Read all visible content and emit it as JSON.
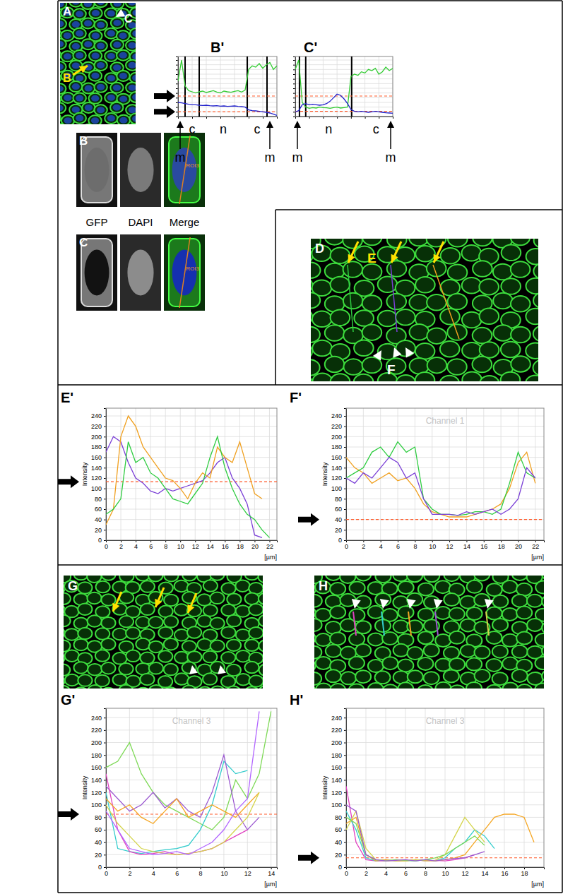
{
  "figure": {
    "image_panels": [
      {
        "label": "A",
        "markers": [
          "B",
          "C"
        ]
      },
      {
        "label": "B",
        "roi": "ROI3"
      },
      {
        "label": "C",
        "roi": "ROI3"
      },
      {
        "label": "D",
        "markers": [
          "E",
          "F"
        ]
      },
      {
        "label": "G"
      },
      {
        "label": "H"
      }
    ],
    "channels": [
      "GFP",
      "DAPI",
      "Merge"
    ]
  },
  "chart_data": [
    {
      "type": "line",
      "label": "B'",
      "x": [
        0,
        0.5,
        1,
        1.5,
        2,
        2.5,
        3,
        3.5,
        4,
        4.5,
        5,
        5.5,
        6,
        6.5,
        7,
        7.5,
        8,
        8.5,
        9,
        9.5,
        10,
        10.5,
        11,
        11.5,
        12,
        12.5,
        13,
        13.5,
        14
      ],
      "xlim": [
        0,
        14
      ],
      "ylim": [
        0,
        255
      ],
      "xticks": [
        0,
        2,
        4,
        6,
        8,
        10,
        12,
        14
      ],
      "yticks": [
        0,
        20,
        40,
        60,
        80,
        100,
        120,
        140,
        160,
        180,
        200,
        220,
        240
      ],
      "grid": true,
      "tick_labels": false,
      "series": [
        {
          "color": "#33cc33",
          "values": [
            150,
            240,
            130,
            110,
            105,
            100,
            105,
            108,
            102,
            106,
            110,
            104,
            100,
            108,
            105,
            103,
            107,
            110,
            104,
            112,
            200,
            215,
            210,
            225,
            205,
            220,
            230,
            200,
            215
          ]
        },
        {
          "color": "#2222cc",
          "values": [
            60,
            58,
            55,
            52,
            50,
            50,
            48,
            47,
            48,
            46,
            45,
            46,
            44,
            45,
            43,
            44,
            45,
            43,
            42,
            40,
            28,
            25,
            24,
            22,
            20,
            18,
            15,
            10,
            5
          ]
        }
      ],
      "hlines": [
        87,
        20
      ],
      "boundaries": [
        1,
        3,
        9.8,
        12.6
      ],
      "region_labels": [
        {
          "label": "c",
          "x": 2
        },
        {
          "label": "n",
          "x": 6.4
        },
        {
          "label": "c",
          "x": 11.2
        }
      ],
      "edge_labels": [
        {
          "label": "m",
          "x": 0.3
        },
        {
          "label": "m",
          "x": 13
        }
      ]
    },
    {
      "type": "line",
      "label": "C'",
      "x": [
        0,
        0.5,
        1,
        1.5,
        2,
        2.5,
        3,
        3.5,
        4,
        4.5,
        5,
        5.5,
        6,
        6.5,
        7,
        7.5,
        8,
        8.5,
        9,
        9.5,
        10,
        10.5,
        11,
        11.5,
        12,
        12.5,
        13,
        13.5,
        14
      ],
      "xlim": [
        0,
        14
      ],
      "ylim": [
        0,
        255
      ],
      "xticks": [
        0,
        2,
        4,
        6,
        8,
        10,
        12,
        14
      ],
      "yticks": [
        0,
        20,
        40,
        60,
        80,
        100,
        120,
        140,
        160,
        180,
        200,
        220,
        240
      ],
      "grid": true,
      "tick_labels": false,
      "series": [
        {
          "color": "#33cc33",
          "values": [
            200,
            240,
            60,
            40,
            35,
            38,
            36,
            40,
            38,
            37,
            35,
            38,
            40,
            36,
            38,
            40,
            170,
            180,
            175,
            190,
            185,
            200,
            195,
            205,
            180,
            190,
            210,
            195,
            205
          ]
        },
        {
          "color": "#2222cc",
          "values": [
            20,
            25,
            50,
            55,
            50,
            52,
            50,
            48,
            50,
            55,
            65,
            80,
            95,
            90,
            75,
            55,
            30,
            22,
            20,
            22,
            20,
            18,
            20,
            22,
            20,
            18,
            16,
            15,
            14
          ]
        }
      ],
      "hlines": [
        87,
        22
      ],
      "boundaries": [
        0.6,
        1.5,
        8.1
      ],
      "region_labels": [
        {
          "label": "n",
          "x": 4.8
        },
        {
          "label": "c",
          "x": 11.6
        }
      ],
      "edge_labels": [
        {
          "label": "m",
          "x": 0.3
        },
        {
          "label": "m",
          "x": 13.7
        }
      ]
    },
    {
      "type": "line",
      "label": "E'",
      "x": [
        0,
        1,
        2,
        3,
        4,
        5,
        6,
        7,
        8,
        9,
        10,
        11,
        12,
        13,
        14,
        15,
        16,
        17,
        18,
        19,
        20,
        21,
        22
      ],
      "xlim": [
        0,
        23
      ],
      "ylim": [
        0,
        255
      ],
      "xticks": [
        0,
        2,
        4,
        6,
        8,
        10,
        12,
        14,
        16,
        18,
        20,
        22
      ],
      "yticks": [
        0,
        20,
        40,
        60,
        80,
        100,
        120,
        140,
        160,
        180,
        200,
        220,
        240
      ],
      "grid": true,
      "x_label": "[µm]",
      "y_label": "Intensity",
      "series": [
        {
          "color": "#7a3fd6",
          "values": [
            170,
            200,
            190,
            150,
            120,
            110,
            95,
            90,
            100,
            95,
            100,
            105,
            110,
            115,
            130,
            150,
            160,
            120,
            100,
            70,
            10,
            5,
            null
          ]
        },
        {
          "color": "#f0a020",
          "values": [
            30,
            60,
            200,
            240,
            220,
            180,
            160,
            140,
            120,
            115,
            100,
            80,
            110,
            130,
            120,
            180,
            160,
            150,
            190,
            140,
            90,
            80,
            null
          ]
        },
        {
          "color": "#2ecc40",
          "values": [
            50,
            60,
            80,
            190,
            150,
            160,
            130,
            120,
            100,
            80,
            75,
            70,
            90,
            110,
            160,
            200,
            140,
            100,
            70,
            50,
            40,
            20,
            5
          ]
        }
      ],
      "hlines": [
        113
      ]
    },
    {
      "type": "line",
      "label": "F'",
      "title": "Channel 1",
      "x": [
        0,
        1,
        2,
        3,
        4,
        5,
        6,
        7,
        8,
        9,
        10,
        11,
        12,
        13,
        14,
        15,
        16,
        17,
        18,
        19,
        20,
        21,
        22
      ],
      "xlim": [
        0,
        23
      ],
      "ylim": [
        0,
        255
      ],
      "xticks": [
        0,
        2,
        4,
        6,
        8,
        10,
        12,
        14,
        16,
        18,
        20,
        22
      ],
      "yticks": [
        0,
        20,
        40,
        60,
        80,
        100,
        120,
        140,
        160,
        180,
        200,
        220,
        240
      ],
      "grid": true,
      "x_label": "[µm]",
      "y_label": "Intensity",
      "series": [
        {
          "color": "#f0a020",
          "values": [
            160,
            140,
            130,
            110,
            120,
            130,
            115,
            120,
            100,
            70,
            55,
            50,
            45,
            45,
            45,
            50,
            55,
            60,
            70,
            100,
            150,
            170,
            110
          ]
        },
        {
          "color": "#2ecc40",
          "values": [
            120,
            130,
            140,
            170,
            180,
            160,
            190,
            170,
            180,
            80,
            60,
            50,
            50,
            48,
            50,
            55,
            55,
            50,
            60,
            110,
            170,
            130,
            120
          ]
        },
        {
          "color": "#7a3fd6",
          "values": [
            120,
            110,
            130,
            120,
            140,
            160,
            150,
            120,
            130,
            80,
            50,
            50,
            50,
            48,
            55,
            50,
            55,
            60,
            50,
            60,
            80,
            140,
            120
          ]
        }
      ],
      "hlines": [
        40
      ]
    },
    {
      "type": "line",
      "label": "G'",
      "title": "Channel 3",
      "x": [
        0,
        1,
        2,
        3,
        4,
        5,
        6,
        7,
        8,
        9,
        10,
        11,
        12,
        13,
        14
      ],
      "xlim": [
        0,
        14.5
      ],
      "ylim": [
        0,
        255
      ],
      "xticks": [
        0,
        2,
        4,
        6,
        8,
        10,
        12,
        14
      ],
      "yticks": [
        0,
        20,
        40,
        60,
        80,
        100,
        120,
        140,
        160,
        180,
        200,
        220,
        240
      ],
      "grid": true,
      "x_label": "[µm]",
      "y_label": "Intensity",
      "series": [
        {
          "color": "#7ed957",
          "values": [
            160,
            170,
            200,
            150,
            120,
            100,
            90,
            80,
            70,
            60,
            80,
            140,
            110,
            150,
            250
          ]
        },
        {
          "color": "#33cccc",
          "values": [
            120,
            30,
            25,
            22,
            25,
            28,
            30,
            35,
            60,
            100,
            170,
            150,
            155,
            null,
            null
          ]
        },
        {
          "color": "#9b59d0",
          "values": [
            130,
            110,
            90,
            100,
            120,
            95,
            110,
            90,
            80,
            120,
            180,
            90,
            60,
            80,
            null
          ]
        },
        {
          "color": "#e040c0",
          "values": [
            150,
            60,
            25,
            20,
            22,
            25,
            20,
            22,
            25,
            30,
            40,
            50,
            60,
            null,
            null
          ]
        },
        {
          "color": "#f5a623",
          "values": [
            110,
            90,
            100,
            80,
            70,
            90,
            110,
            80,
            90,
            100,
            90,
            80,
            100,
            120,
            null
          ]
        },
        {
          "color": "#d4d44a",
          "values": [
            100,
            70,
            50,
            30,
            25,
            22,
            20,
            22,
            25,
            30,
            40,
            60,
            80,
            120,
            null
          ]
        },
        {
          "color": "#b266ff",
          "values": [
            90,
            60,
            30,
            25,
            20,
            22,
            25,
            20,
            30,
            40,
            60,
            90,
            110,
            250,
            null
          ]
        }
      ],
      "hlines": [
        85
      ]
    },
    {
      "type": "line",
      "label": "H'",
      "title": "Channel 3",
      "x": [
        0,
        1,
        2,
        3,
        4,
        5,
        6,
        7,
        8,
        9,
        10,
        11,
        12,
        13,
        14,
        15,
        16,
        17,
        18,
        19
      ],
      "xlim": [
        0,
        20
      ],
      "ylim": [
        0,
        255
      ],
      "xticks": [
        0,
        2,
        4,
        6,
        8,
        10,
        12,
        14,
        16,
        18
      ],
      "yticks": [
        0,
        20,
        40,
        60,
        80,
        100,
        120,
        140,
        160,
        180,
        200,
        220,
        240
      ],
      "grid": true,
      "x_label": "[µm]",
      "y_label": "Intensity",
      "series": [
        {
          "color": "#e040c0",
          "values": [
            130,
            40,
            12,
            10,
            10,
            11,
            10,
            12,
            10,
            11,
            10,
            12,
            15,
            20,
            null,
            null,
            null,
            null,
            null,
            null
          ]
        },
        {
          "color": "#33cccc",
          "values": [
            90,
            60,
            15,
            10,
            12,
            10,
            11,
            10,
            12,
            10,
            15,
            30,
            40,
            60,
            50,
            30,
            null,
            null,
            null,
            null
          ]
        },
        {
          "color": "#f5a623",
          "values": [
            70,
            80,
            20,
            10,
            12,
            10,
            10,
            12,
            11,
            10,
            12,
            15,
            20,
            40,
            60,
            80,
            85,
            85,
            80,
            40
          ]
        },
        {
          "color": "#d4d44a",
          "values": [
            60,
            90,
            30,
            12,
            10,
            11,
            10,
            12,
            10,
            11,
            20,
            50,
            80,
            60,
            40,
            null,
            null,
            null,
            null,
            null
          ]
        },
        {
          "color": "#7ed957",
          "values": [
            80,
            70,
            20,
            12,
            10,
            12,
            11,
            10,
            12,
            15,
            20,
            30,
            40,
            50,
            35,
            null,
            null,
            null,
            null,
            null
          ]
        },
        {
          "color": "#9b59d0",
          "values": [
            100,
            90,
            20,
            12,
            10,
            11,
            12,
            10,
            12,
            10,
            12,
            14,
            15,
            20,
            25,
            null,
            null,
            null,
            null,
            null
          ]
        }
      ],
      "hlines": [
        15
      ]
    }
  ]
}
